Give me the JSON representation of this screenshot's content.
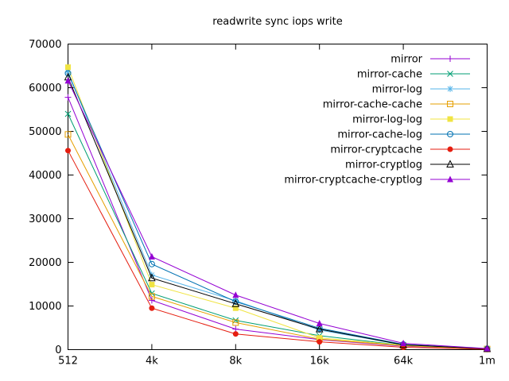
{
  "chart_data": {
    "type": "line",
    "title": "readwrite sync iops write",
    "x_categories": [
      "512",
      "4k",
      "8k",
      "16k",
      "64k",
      "1m"
    ],
    "y_ticks": [
      0,
      10000,
      20000,
      30000,
      40000,
      50000,
      60000,
      70000
    ],
    "ylim": [
      0,
      70000
    ],
    "grid": false,
    "legend_position": "top-right-inside",
    "series": [
      {
        "name": "mirror",
        "color": "#9400d3",
        "marker": "plus",
        "values": [
          57800,
          11300,
          4700,
          2300,
          800,
          150
        ]
      },
      {
        "name": "mirror-cache",
        "color": "#009e73",
        "marker": "x",
        "values": [
          54000,
          12900,
          6700,
          3200,
          1000,
          150
        ]
      },
      {
        "name": "mirror-log",
        "color": "#56b4e9",
        "marker": "asterisk",
        "values": [
          63600,
          17100,
          11200,
          4500,
          1100,
          200
        ]
      },
      {
        "name": "mirror-cache-cache",
        "color": "#e69f00",
        "marker": "square-open",
        "values": [
          49300,
          12200,
          6200,
          2400,
          900,
          150
        ]
      },
      {
        "name": "mirror-log-log",
        "color": "#f0e442",
        "marker": "square-filled",
        "values": [
          64700,
          14900,
          9500,
          2700,
          1000,
          150
        ]
      },
      {
        "name": "mirror-cache-log",
        "color": "#0072b2",
        "marker": "circle-open",
        "values": [
          63300,
          19600,
          11000,
          4900,
          1200,
          200
        ]
      },
      {
        "name": "mirror-cryptcache",
        "color": "#e51e10",
        "marker": "circle-filled",
        "values": [
          45600,
          9500,
          3600,
          1800,
          550,
          100
        ]
      },
      {
        "name": "mirror-cryptlog",
        "color": "#000000",
        "marker": "triangle-open",
        "values": [
          62400,
          16400,
          10500,
          4700,
          1100,
          200
        ]
      },
      {
        "name": "mirror-cryptcache-cryptlog",
        "color": "#9400d3",
        "marker": "triangle-filled",
        "values": [
          61600,
          21300,
          12500,
          6000,
          1450,
          250
        ]
      }
    ],
    "axis_color": "#000000",
    "background_color": "#ffffff"
  }
}
